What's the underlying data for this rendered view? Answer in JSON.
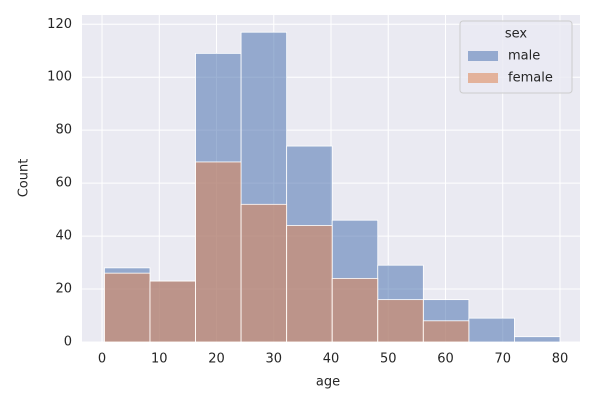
{
  "chart_data": {
    "type": "histogram",
    "xlabel": "age",
    "ylabel": "Count",
    "bins": [
      0.42,
      8.378,
      16.336,
      24.294,
      32.252,
      40.21,
      48.168,
      56.126,
      64.084,
      72.042,
      80
    ],
    "series": [
      {
        "name": "male",
        "color": "#4c72b0",
        "values": [
          28,
          23,
          109,
          117,
          74,
          46,
          29,
          16,
          9,
          2
        ]
      },
      {
        "name": "female",
        "color": "#dd8452",
        "values": [
          26,
          23,
          68,
          52,
          44,
          24,
          16,
          8,
          0,
          0
        ]
      }
    ],
    "legend_title": "sex",
    "legend": "upper right",
    "xlim": [
      -3.5,
      83.5
    ],
    "ylim": [
      0,
      123.5
    ],
    "xticks": [
      0,
      10,
      20,
      30,
      40,
      50,
      60,
      70,
      80
    ],
    "yticks": [
      0,
      20,
      40,
      60,
      80,
      100,
      120
    ],
    "grid": true
  }
}
